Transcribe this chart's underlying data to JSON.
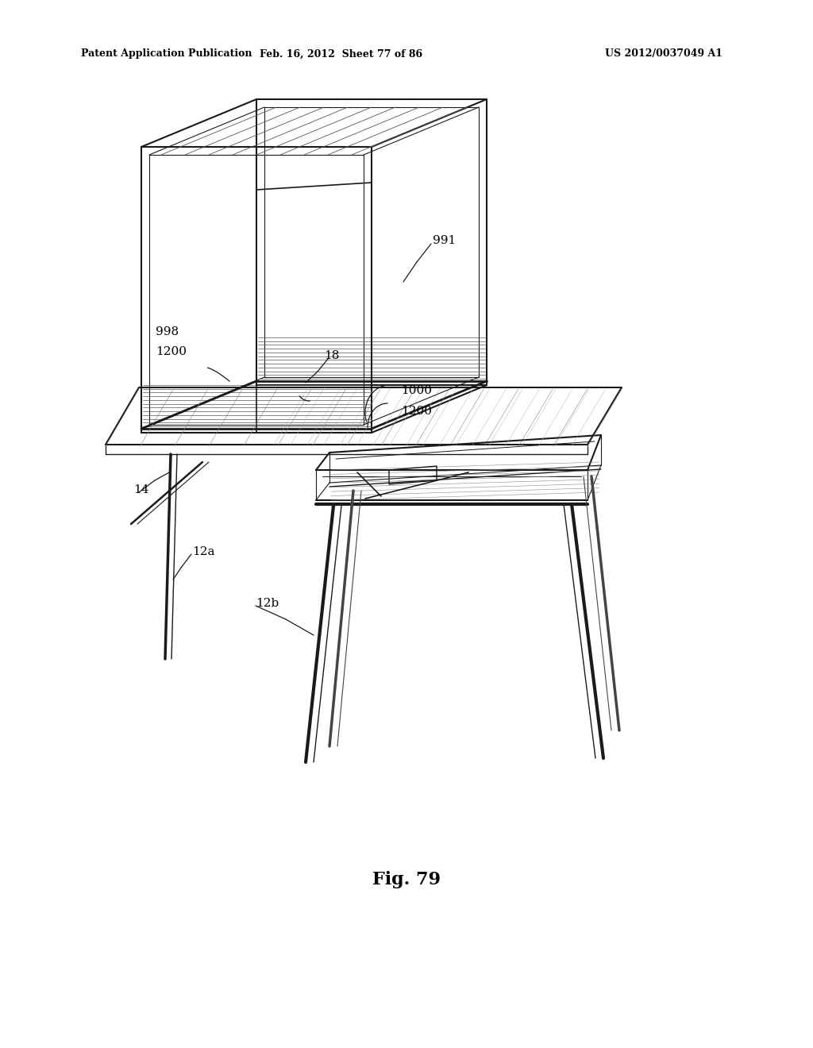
{
  "background_color": "#ffffff",
  "header_left": "Patent Application Publication",
  "header_center": "Feb. 16, 2012  Sheet 77 of 86",
  "header_right": "US 2012/0037049 A1",
  "figure_label": "Fig. 79",
  "line_color": "#1a1a1a",
  "text_color": "#000000"
}
